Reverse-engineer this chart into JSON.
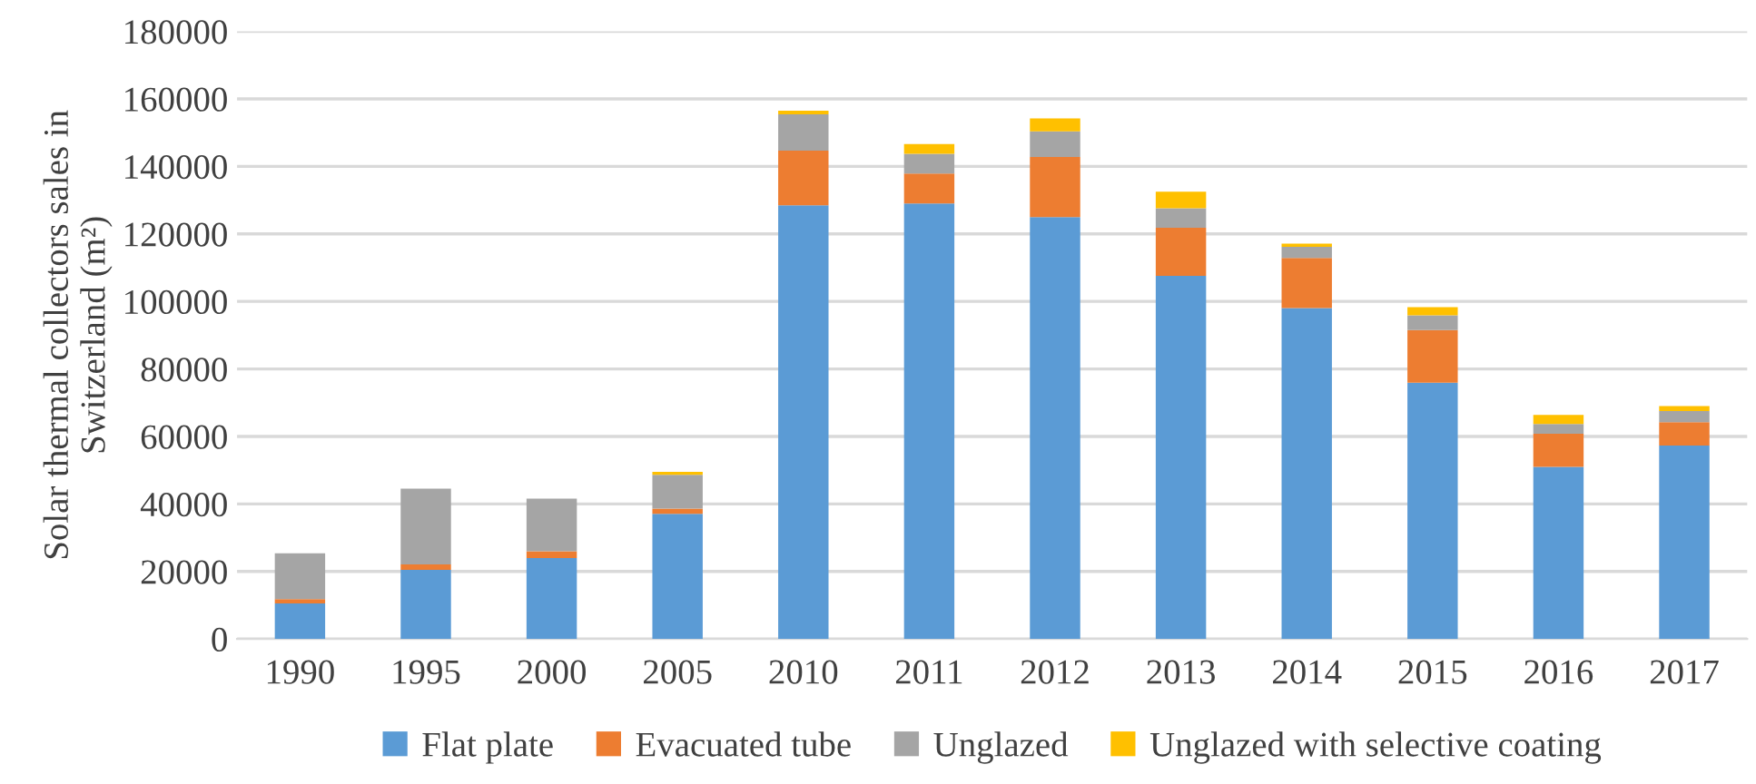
{
  "chart_data": {
    "type": "bar",
    "stacked": true,
    "ylabel": "Solar thermal collectors sales in\nSwitzerland (m²)",
    "categories": [
      "1990",
      "1995",
      "2000",
      "2005",
      "2010",
      "2011",
      "2012",
      "2013",
      "2014",
      "2015",
      "2016",
      "2017"
    ],
    "series": [
      {
        "name": "Flat plate",
        "color": "#5b9bd5",
        "values": [
          10500,
          20500,
          24000,
          37100,
          128500,
          129000,
          125000,
          107600,
          98000,
          75900,
          51000,
          57300
        ]
      },
      {
        "name": "Evacuated tube",
        "color": "#ed7d31",
        "values": [
          1300,
          1600,
          2000,
          1500,
          16200,
          8900,
          17800,
          14200,
          14900,
          15600,
          9800,
          6900
        ]
      },
      {
        "name": "Unglazed",
        "color": "#a5a5a5",
        "values": [
          13600,
          22400,
          15600,
          10000,
          10700,
          5800,
          7600,
          5800,
          3300,
          4400,
          2900,
          3300
        ]
      },
      {
        "name": "Unglazed with selective coating",
        "color": "#ffc000",
        "values": [
          0,
          0,
          0,
          900,
          1100,
          2900,
          3800,
          4900,
          900,
          2400,
          2700,
          1500
        ]
      }
    ],
    "ylim": [
      0,
      180000
    ],
    "yticks": [
      0,
      20000,
      40000,
      60000,
      80000,
      100000,
      120000,
      140000,
      160000,
      180000
    ],
    "grid": "y",
    "legend": "bottom"
  }
}
